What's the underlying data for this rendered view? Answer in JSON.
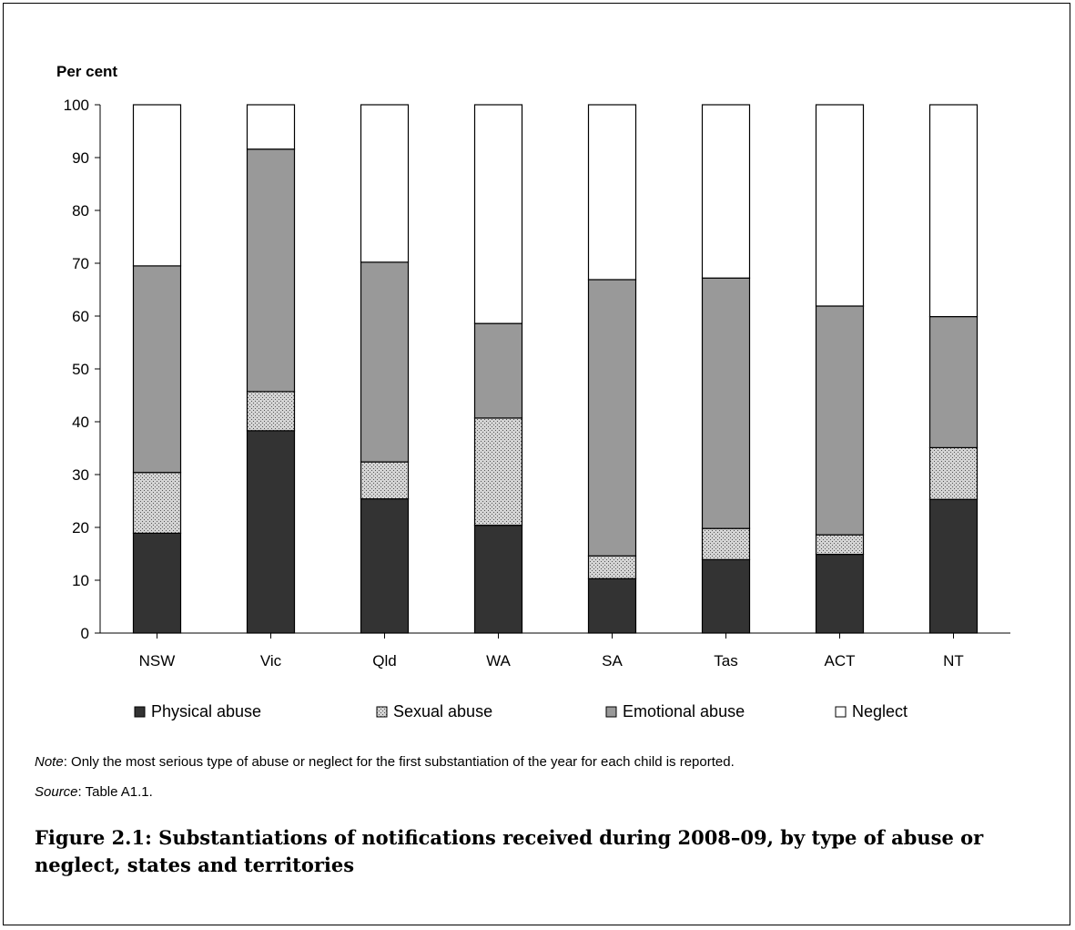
{
  "chart_data": {
    "type": "bar",
    "stacked": true,
    "ylabel": "Per cent",
    "ylim": [
      0,
      100
    ],
    "yticks": [
      0,
      10,
      20,
      30,
      40,
      50,
      60,
      70,
      80,
      90,
      100
    ],
    "categories": [
      "NSW",
      "Vic",
      "Qld",
      "WA",
      "SA",
      "Tas",
      "ACT",
      "NT"
    ],
    "series": [
      {
        "name": "Physical abuse",
        "color": "#333333",
        "pattern": "solid",
        "values": [
          18.9,
          38.3,
          25.4,
          20.4,
          10.3,
          13.9,
          14.9,
          25.3
        ]
      },
      {
        "name": "Sexual abuse",
        "color": "#c8c8c8",
        "pattern": "dotted",
        "values": [
          11.5,
          7.4,
          7.0,
          20.3,
          4.3,
          5.9,
          3.7,
          9.8
        ]
      },
      {
        "name": "Emotional abuse",
        "color": "#999999",
        "pattern": "solid",
        "values": [
          39.1,
          45.9,
          37.8,
          17.9,
          52.3,
          47.4,
          43.3,
          24.8
        ]
      },
      {
        "name": "Neglect",
        "color": "#ffffff",
        "pattern": "solid",
        "values": [
          30.5,
          8.4,
          29.8,
          41.4,
          33.1,
          32.8,
          38.1,
          40.1
        ]
      }
    ],
    "legend_position": "bottom",
    "grid": false
  },
  "note": {
    "label": "Note",
    "text": ": Only the most serious type of abuse or neglect for the first substantiation of the year for each child is reported."
  },
  "source": {
    "label": "Source",
    "text": ": Table A1.1."
  },
  "caption": "Figure 2.1: Substantiations of notifications received during 2008–09, by type of abuse or neglect, states and territories"
}
